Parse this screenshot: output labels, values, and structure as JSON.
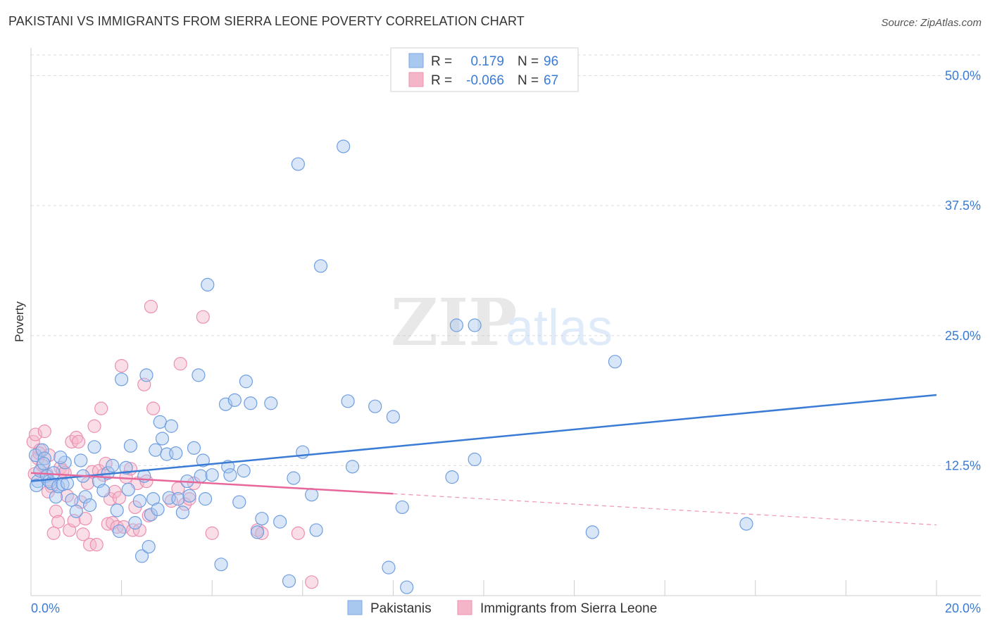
{
  "title": "PAKISTANI VS IMMIGRANTS FROM SIERRA LEONE POVERTY CORRELATION CHART",
  "source": "Source: ZipAtlas.com",
  "watermark": {
    "zip": "ZIP",
    "atlas": "atlas"
  },
  "colors": {
    "blue": "#3a7bd5",
    "blue_fill": "#a9c8f0",
    "pink": "#e8679a",
    "pink_fill": "#f5b5c9",
    "grid": "#dddddd"
  },
  "legend": {
    "rows": [
      {
        "r_label": "R =",
        "r_value": "0.179",
        "n_label": "N =",
        "n_value": "96",
        "series": "blue"
      },
      {
        "r_label": "R =",
        "r_value": "-0.066",
        "n_label": "N =",
        "n_value": "67",
        "series": "pink"
      }
    ]
  },
  "chart_data": {
    "type": "scatter",
    "title": "PAKISTANI VS IMMIGRANTS FROM SIERRA LEONE POVERTY CORRELATION CHART",
    "xlabel": "",
    "ylabel": "Poverty",
    "xlim": [
      0,
      20
    ],
    "ylim": [
      0,
      52
    ],
    "x_tick_labels": [
      "0.0%",
      "20.0%"
    ],
    "y_ticks": [
      12.5,
      25.0,
      37.5,
      50.0
    ],
    "y_tick_labels": [
      "12.5%",
      "25.0%",
      "37.5%",
      "50.0%"
    ],
    "legend_position": "top-center",
    "series": [
      {
        "name": "Pakistanis",
        "color": "#3a7bd5",
        "trend": {
          "x0": 0,
          "y0": 11.0,
          "x1": 20,
          "y1": 19.3,
          "solid_to": 20
        },
        "points": [
          [
            0.1,
            13.5
          ],
          [
            0.15,
            11.0
          ],
          [
            0.2,
            12.0
          ],
          [
            0.25,
            14.0
          ],
          [
            0.3,
            13.2
          ],
          [
            0.35,
            11.5
          ],
          [
            0.4,
            11.0
          ],
          [
            0.45,
            10.8
          ],
          [
            0.5,
            11.8
          ],
          [
            0.55,
            9.5
          ],
          [
            0.6,
            10.5
          ],
          [
            0.7,
            10.7
          ],
          [
            0.75,
            12.8
          ],
          [
            0.8,
            10.8
          ],
          [
            0.9,
            9.2
          ],
          [
            1.0,
            8.1
          ],
          [
            1.1,
            13.0
          ],
          [
            1.15,
            11.5
          ],
          [
            1.2,
            9.5
          ],
          [
            1.3,
            8.7
          ],
          [
            1.4,
            14.3
          ],
          [
            1.5,
            11.0
          ],
          [
            1.6,
            10.1
          ],
          [
            1.7,
            11.8
          ],
          [
            1.8,
            12.5
          ],
          [
            1.9,
            8.2
          ],
          [
            1.95,
            6.2
          ],
          [
            2.0,
            20.8
          ],
          [
            2.1,
            12.3
          ],
          [
            2.15,
            10.2
          ],
          [
            2.2,
            14.4
          ],
          [
            2.3,
            7.0
          ],
          [
            2.4,
            9.1
          ],
          [
            2.45,
            3.8
          ],
          [
            2.5,
            11.5
          ],
          [
            2.55,
            21.2
          ],
          [
            2.6,
            4.7
          ],
          [
            2.65,
            7.8
          ],
          [
            2.7,
            9.3
          ],
          [
            2.75,
            14.0
          ],
          [
            2.8,
            8.3
          ],
          [
            2.85,
            16.7
          ],
          [
            2.9,
            15.1
          ],
          [
            3.0,
            13.6
          ],
          [
            3.05,
            9.4
          ],
          [
            3.1,
            16.3
          ],
          [
            3.2,
            13.7
          ],
          [
            3.25,
            9.3
          ],
          [
            3.35,
            8.0
          ],
          [
            3.45,
            11.0
          ],
          [
            3.5,
            9.6
          ],
          [
            3.6,
            14.2
          ],
          [
            3.7,
            21.2
          ],
          [
            3.75,
            11.5
          ],
          [
            3.8,
            13.0
          ],
          [
            3.85,
            9.3
          ],
          [
            3.9,
            29.9
          ],
          [
            4.0,
            11.6
          ],
          [
            4.2,
            3.0
          ],
          [
            4.3,
            18.4
          ],
          [
            4.35,
            12.4
          ],
          [
            4.4,
            11.6
          ],
          [
            4.5,
            18.8
          ],
          [
            4.6,
            9.0
          ],
          [
            4.7,
            12.0
          ],
          [
            4.75,
            20.6
          ],
          [
            4.85,
            18.5
          ],
          [
            5.0,
            6.1
          ],
          [
            5.1,
            7.4
          ],
          [
            5.3,
            18.5
          ],
          [
            5.5,
            7.1
          ],
          [
            5.7,
            1.4
          ],
          [
            5.8,
            11.3
          ],
          [
            5.9,
            41.5
          ],
          [
            6.0,
            13.8
          ],
          [
            6.2,
            9.7
          ],
          [
            6.3,
            6.3
          ],
          [
            6.4,
            31.7
          ],
          [
            6.9,
            43.2
          ],
          [
            7.0,
            18.7
          ],
          [
            7.1,
            12.4
          ],
          [
            7.6,
            18.2
          ],
          [
            7.9,
            2.7
          ],
          [
            8.0,
            17.2
          ],
          [
            8.2,
            8.5
          ],
          [
            8.3,
            0.8
          ],
          [
            9.4,
            26.0
          ],
          [
            9.3,
            11.4
          ],
          [
            9.8,
            26.0
          ],
          [
            9.8,
            13.1
          ],
          [
            12.4,
            6.1
          ],
          [
            12.9,
            22.5
          ],
          [
            15.8,
            6.9
          ],
          [
            0.12,
            10.6
          ],
          [
            0.28,
            12.7
          ],
          [
            0.65,
            13.3
          ]
        ]
      },
      {
        "name": "Immigrants from Sierra Leone",
        "color": "#e8679a",
        "trend": {
          "x0": 0,
          "y0": 11.8,
          "x1": 20,
          "y1": 6.8,
          "solid_to": 8.0
        },
        "points": [
          [
            0.05,
            14.8
          ],
          [
            0.1,
            15.5
          ],
          [
            0.15,
            13.2
          ],
          [
            0.2,
            14.0
          ],
          [
            0.25,
            12.5
          ],
          [
            0.3,
            15.8
          ],
          [
            0.35,
            11.7
          ],
          [
            0.4,
            13.5
          ],
          [
            0.45,
            10.5
          ],
          [
            0.5,
            6.0
          ],
          [
            0.55,
            8.1
          ],
          [
            0.6,
            7.1
          ],
          [
            0.65,
            12.3
          ],
          [
            0.7,
            12.0
          ],
          [
            0.75,
            11.8
          ],
          [
            0.8,
            9.6
          ],
          [
            0.85,
            6.3
          ],
          [
            0.9,
            14.8
          ],
          [
            0.95,
            7.2
          ],
          [
            1.0,
            15.2
          ],
          [
            1.05,
            14.8
          ],
          [
            1.1,
            9.0
          ],
          [
            1.15,
            5.9
          ],
          [
            1.2,
            7.4
          ],
          [
            1.25,
            10.8
          ],
          [
            1.3,
            4.9
          ],
          [
            1.35,
            11.9
          ],
          [
            1.4,
            16.3
          ],
          [
            1.45,
            4.9
          ],
          [
            1.5,
            12.0
          ],
          [
            1.55,
            18.0
          ],
          [
            1.6,
            11.6
          ],
          [
            1.65,
            12.7
          ],
          [
            1.7,
            6.9
          ],
          [
            1.75,
            9.3
          ],
          [
            1.8,
            7.0
          ],
          [
            1.85,
            10.0
          ],
          [
            1.9,
            6.6
          ],
          [
            1.95,
            9.4
          ],
          [
            2.0,
            22.1
          ],
          [
            2.05,
            6.6
          ],
          [
            2.1,
            11.4
          ],
          [
            2.2,
            12.2
          ],
          [
            2.25,
            6.3
          ],
          [
            2.3,
            8.5
          ],
          [
            2.35,
            10.8
          ],
          [
            2.4,
            6.3
          ],
          [
            2.5,
            20.3
          ],
          [
            2.55,
            11.0
          ],
          [
            2.6,
            7.7
          ],
          [
            2.65,
            27.8
          ],
          [
            2.7,
            18.0
          ],
          [
            3.1,
            9.1
          ],
          [
            3.25,
            10.3
          ],
          [
            3.3,
            22.3
          ],
          [
            3.4,
            8.8
          ],
          [
            3.5,
            9.3
          ],
          [
            3.6,
            10.8
          ],
          [
            3.8,
            26.8
          ],
          [
            4.0,
            6.0
          ],
          [
            5.0,
            6.3
          ],
          [
            5.1,
            6.0
          ],
          [
            5.9,
            6.0
          ],
          [
            6.2,
            1.3
          ],
          [
            0.08,
            11.7
          ],
          [
            0.18,
            13.7
          ],
          [
            0.38,
            10.0
          ]
        ]
      }
    ]
  }
}
